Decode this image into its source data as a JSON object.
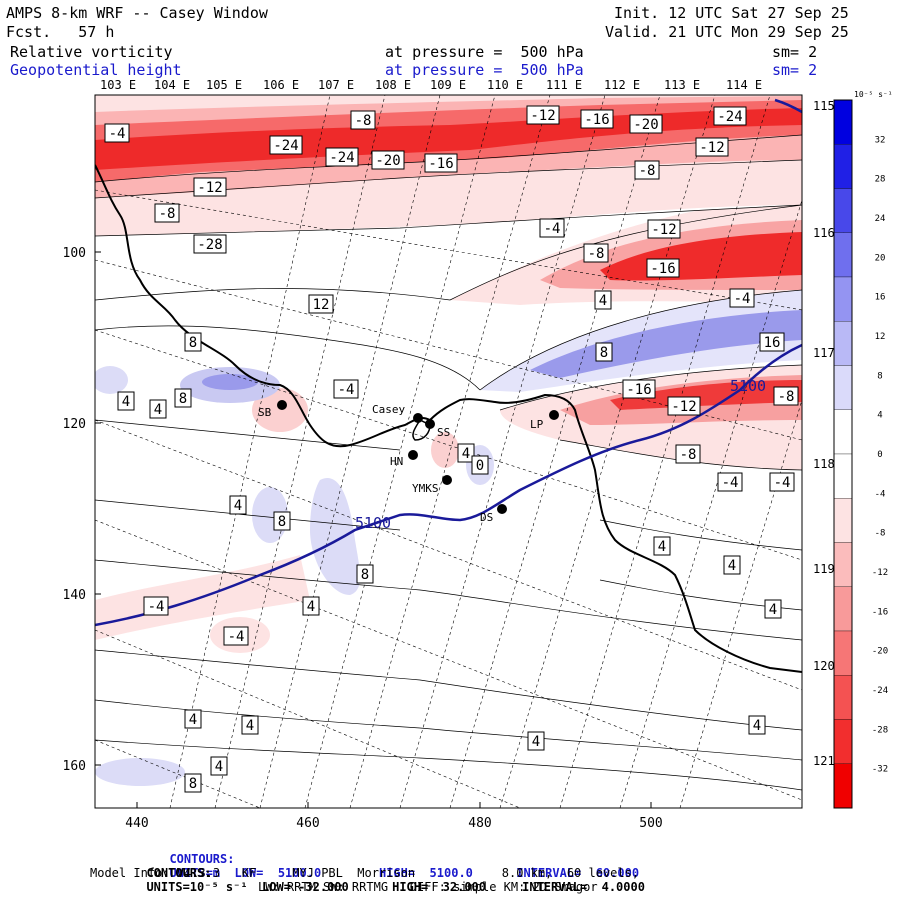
{
  "header": {
    "title_left": "AMPS 8-km WRF -- Casey Window",
    "fcst": "Fcst.   57 h",
    "init": "Init. 12 UTC Sat 27 Sep 25",
    "valid": "Valid. 21 UTC Mon 29 Sep 25",
    "field1_name": "Relative vorticity",
    "field1_level": "at pressure =  500 hPa",
    "field1_sm": "sm= 2",
    "field2_name": "Geopotential height",
    "field2_level": "at pressure =  500 hPa",
    "field2_sm": "sm= 2"
  },
  "top_longitudes": [
    "103 E",
    "104 E",
    "105 E",
    "106 E",
    "107 E",
    "108 E",
    "109 E",
    "110 E",
    "111 E",
    "112 E",
    "113 E",
    "114 E"
  ],
  "right_longitudes": [
    "115 E",
    "116 E",
    "117 E",
    "118 E",
    "119 E",
    "120 E",
    "121 E"
  ],
  "x_ticks": [
    "440",
    "460",
    "480",
    "500"
  ],
  "y_ticks": [
    "100",
    "120",
    "140",
    "160"
  ],
  "stations": [
    {
      "name": "SB"
    },
    {
      "name": "Casey"
    },
    {
      "name": "SS"
    },
    {
      "name": "HN"
    },
    {
      "name": "YMKS"
    },
    {
      "name": "DS"
    },
    {
      "name": "LP"
    }
  ],
  "colorbar": {
    "unit": "10⁻⁵ s⁻¹",
    "labels": [
      "32",
      "28",
      "24",
      "20",
      "16",
      "12",
      "8",
      "4",
      "0",
      "-4",
      "-8",
      "-12",
      "-16",
      "-20",
      "-24",
      "-28",
      "-32"
    ]
  },
  "vort_labels": [
    "-4",
    "-8",
    "-24",
    "-24",
    "-20",
    "-16",
    "-12",
    "-16",
    "-20",
    "-24",
    "-12",
    "-8",
    "-12",
    "-8",
    "-4",
    "-8",
    "-12",
    "-16",
    "-28",
    "-4",
    "4",
    "12",
    "8",
    "16",
    "8",
    "-4",
    "4",
    "4",
    "8",
    "-16",
    "-12",
    "-8",
    "4",
    "-8",
    "-4",
    "-4",
    "4",
    "8",
    "8",
    "4",
    "-4",
    "4",
    "-4",
    "4",
    "4",
    "4",
    "4",
    "4",
    "4",
    "8",
    "4",
    "0"
  ],
  "height_labels": [
    "5100",
    "5100"
  ],
  "footer": {
    "line1_a": "CONTOURS:",
    "line1_b": "UNITS=m  LOW=  5100.0        HIGH=  5100.0      INTERVAL=  60.000",
    "line2_a": "CONTOURS:",
    "line2_b": "UNITS=10⁻⁵ s⁻¹  LOW= -32.000      HIGH=  32.000     INTERVAL=  4.0000",
    "line3": "Model Info: V4.3.3   KF     MYJ PBL  Morrison            8.0 km,  60 levels,",
    "line4": "LW: RRTM SW: RRTMG   DIFF: simple KM: 2D Smagor"
  },
  "colors": {
    "neg_strong": "#f00000",
    "neg_weak": "#fde0e0",
    "pos_strong": "#0000e0",
    "pos_weak": "#e4e4fa",
    "height_line": "#1a1a9a"
  }
}
